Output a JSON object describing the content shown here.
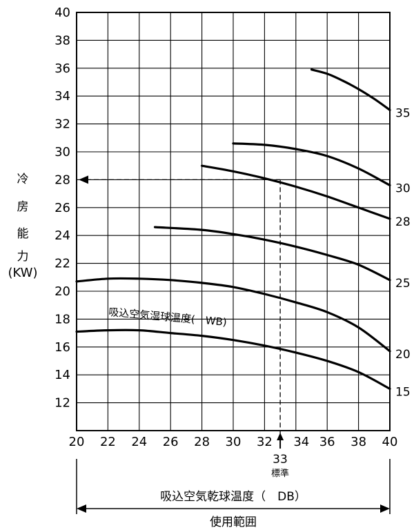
{
  "chart_data": {
    "type": "line",
    "ylabel_chars": [
      "冷",
      "房",
      "能",
      "力"
    ],
    "ylabel_unit": "(KW)",
    "xlabel": "吸込空気乾球温度（　DB）",
    "series_caption": "吸込空気湿球温度(　WB)",
    "range_label": "使用範囲",
    "standard": {
      "x": 33,
      "y": 28,
      "label_value": "33",
      "label_text": "標準"
    },
    "xlim": [
      20,
      40
    ],
    "ylim": [
      10,
      40
    ],
    "xticks": [
      20,
      22,
      24,
      26,
      28,
      30,
      32,
      34,
      36,
      38,
      40
    ],
    "yticks": [
      12,
      14,
      16,
      18,
      20,
      22,
      24,
      26,
      28,
      30,
      32,
      34,
      36,
      38,
      40
    ],
    "series": [
      {
        "name": "35",
        "x": [
          35,
          36,
          37,
          38,
          39,
          40
        ],
        "y": [
          35.9,
          35.6,
          35.1,
          34.5,
          33.8,
          33.0
        ]
      },
      {
        "name": "30",
        "x": [
          30,
          32,
          34,
          36,
          38,
          40
        ],
        "y": [
          30.6,
          30.5,
          30.2,
          29.7,
          28.8,
          27.6
        ]
      },
      {
        "name": "28",
        "x": [
          28,
          30,
          32,
          34,
          36,
          38,
          40
        ],
        "y": [
          29.0,
          28.6,
          28.1,
          27.5,
          26.8,
          26.0,
          25.2
        ]
      },
      {
        "name": "25",
        "x": [
          25,
          28,
          30,
          32,
          34,
          36,
          38,
          40
        ],
        "y": [
          24.6,
          24.4,
          24.1,
          23.7,
          23.2,
          22.6,
          21.9,
          20.8
        ]
      },
      {
        "name": "20",
        "x": [
          20,
          22,
          24,
          26,
          28,
          30,
          32,
          34,
          36,
          38,
          40
        ],
        "y": [
          20.7,
          20.9,
          20.9,
          20.8,
          20.6,
          20.3,
          19.8,
          19.2,
          18.5,
          17.4,
          15.7
        ]
      },
      {
        "name": "15",
        "x": [
          20,
          22,
          24,
          26,
          28,
          30,
          32,
          34,
          36,
          38,
          40
        ],
        "y": [
          17.1,
          17.2,
          17.2,
          17.0,
          16.8,
          16.5,
          16.1,
          15.6,
          15.0,
          14.2,
          13.0
        ]
      }
    ]
  }
}
